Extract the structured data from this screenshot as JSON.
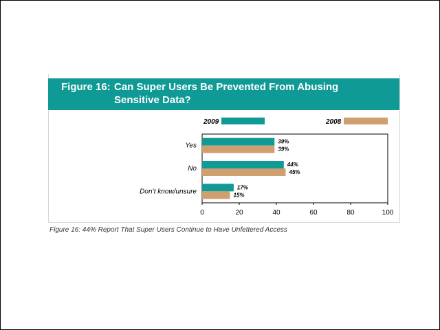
{
  "figure": {
    "number_label": "Figure 16:",
    "question_line1": "Can Super Users Be Prevented From Abusing",
    "question_line2": "Sensitive Data?",
    "caption": "Figure 16: 44% Report That Super Users Continue to Have Unfettered Access"
  },
  "colors": {
    "banner": "#0f9a95",
    "series_2009": "#0f9a95",
    "series_2008": "#cf9f6f"
  },
  "chart_data": {
    "type": "bar",
    "orientation": "horizontal",
    "categories": [
      "Yes",
      "No",
      "Don’t know/unsure"
    ],
    "series": [
      {
        "name": "2009",
        "values": [
          39,
          44,
          17
        ],
        "labels": [
          "39%",
          "44%",
          "17%"
        ]
      },
      {
        "name": "2008",
        "values": [
          39,
          45,
          15
        ],
        "labels": [
          "39%",
          "45%",
          "15%"
        ]
      }
    ],
    "xlim": [
      0,
      100
    ],
    "xticks": [
      0,
      20,
      40,
      60,
      80,
      100
    ],
    "xlabel": "",
    "ylabel": "",
    "grid": false,
    "legend_position": "top"
  }
}
